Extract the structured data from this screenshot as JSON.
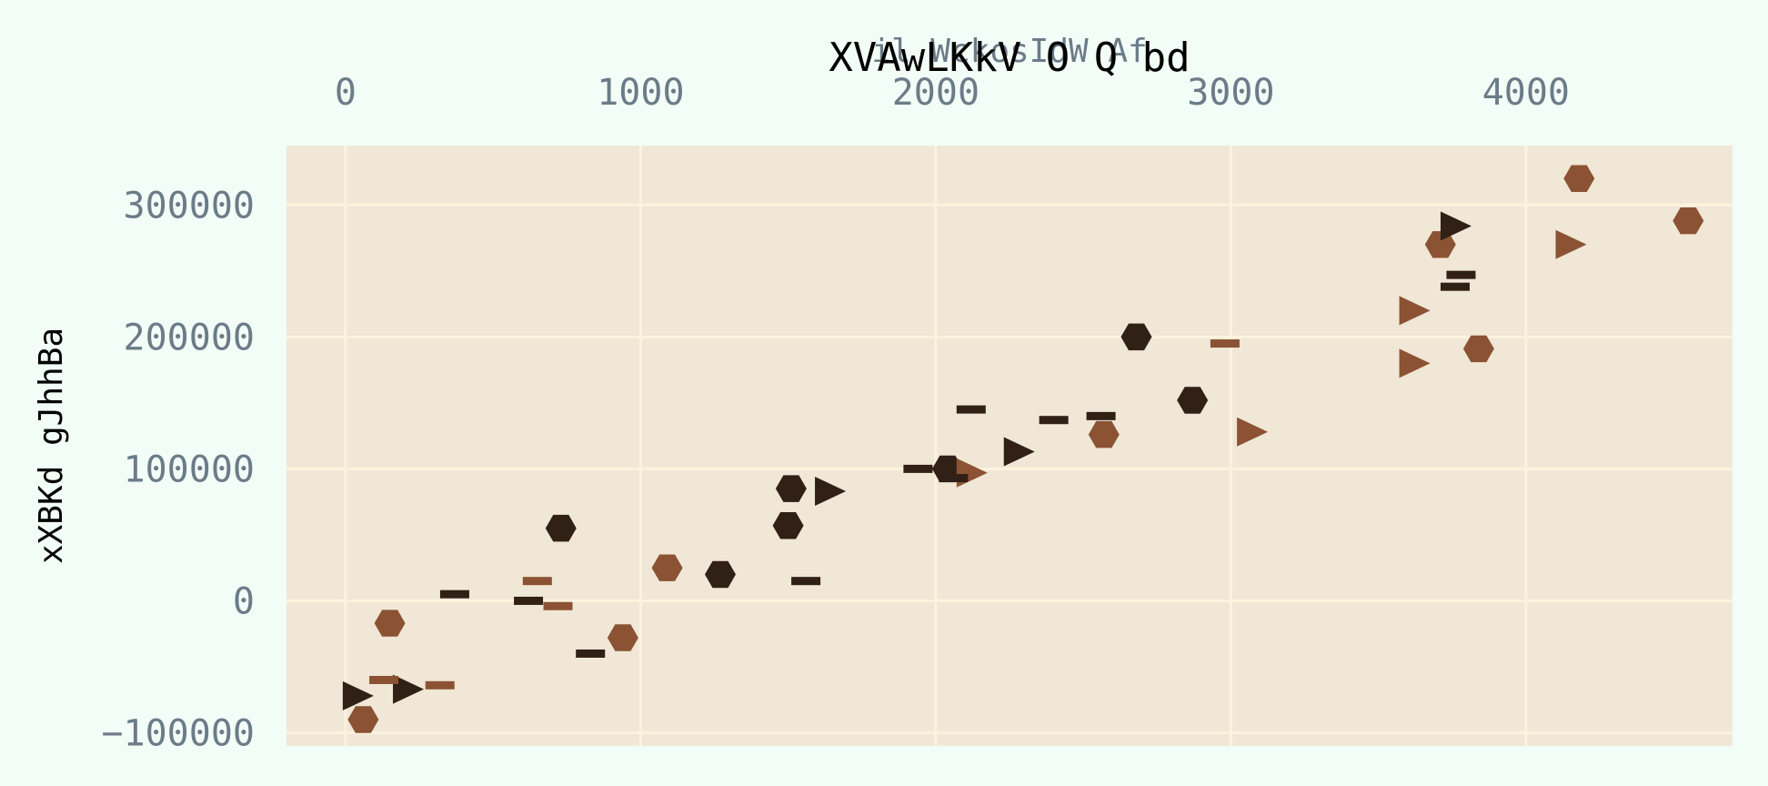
{
  "chart_data": {
    "type": "scatter",
    "title": "XVAwLKkV O  Q bd",
    "xlabel": "il WckosIdW Af",
    "ylabel": "xXBKd gJhhBa",
    "xlim": [
      -200,
      4700
    ],
    "ylim": [
      -110000,
      345000
    ],
    "x_ticks": [
      0,
      1000,
      2000,
      3000,
      4000
    ],
    "y_ticks": [
      -100000,
      0,
      100000,
      200000,
      300000
    ],
    "x_tick_labels": [
      "0",
      "1000",
      "2000",
      "3000",
      "4000"
    ],
    "y_tick_labels": [
      "−100000",
      "0",
      "100000",
      "200000",
      "300000"
    ],
    "x_axis_position": "top",
    "grid": true,
    "colors": {
      "page_background": "#f3fdf8",
      "plot_background": "#f0e7d6",
      "grid": "#fcf3de",
      "dark": "#302016",
      "brown": "#8b5333"
    },
    "series": [
      {
        "marker": "hexagon",
        "color": "#302016",
        "points": [
          [
            730,
            55000
          ],
          [
            1510,
            85000
          ],
          [
            1500,
            57000
          ],
          [
            1270,
            20000
          ],
          [
            2040,
            100000
          ],
          [
            2680,
            200000
          ],
          [
            2870,
            152000
          ]
        ]
      },
      {
        "marker": "hexagon",
        "color": "#8b5333",
        "points": [
          [
            60,
            -90000
          ],
          [
            150,
            -17000
          ],
          [
            940,
            -28000
          ],
          [
            1090,
            25000
          ],
          [
            2570,
            126000
          ],
          [
            3710,
            270000
          ],
          [
            3840,
            191000
          ],
          [
            4180,
            320000
          ],
          [
            4550,
            288000
          ]
        ]
      },
      {
        "marker": "triangle-right",
        "color": "#302016",
        "points": [
          [
            40,
            -72000
          ],
          [
            210,
            -67000
          ],
          [
            1640,
            83000
          ],
          [
            2280,
            113000
          ],
          [
            3760,
            284000
          ]
        ]
      },
      {
        "marker": "triangle-right",
        "color": "#8b5333",
        "points": [
          [
            2120,
            97000
          ],
          [
            3070,
            128000
          ],
          [
            3620,
            180000
          ],
          [
            3620,
            220000
          ],
          [
            4150,
            270000
          ]
        ]
      },
      {
        "marker": "hline",
        "color": "#302016",
        "points": [
          [
            370,
            5000
          ],
          [
            620,
            0
          ],
          [
            830,
            -40000
          ],
          [
            1560,
            15000
          ],
          [
            1940,
            100000
          ],
          [
            2060,
            93000
          ],
          [
            2120,
            145000
          ],
          [
            2400,
            137000
          ],
          [
            2560,
            140000
          ],
          [
            3760,
            238000
          ],
          [
            3780,
            247000
          ]
        ]
      },
      {
        "marker": "hline",
        "color": "#8b5333",
        "points": [
          [
            130,
            -60000
          ],
          [
            320,
            -64000
          ],
          [
            650,
            15000
          ],
          [
            720,
            -4000
          ],
          [
            2980,
            195000
          ]
        ]
      }
    ]
  }
}
